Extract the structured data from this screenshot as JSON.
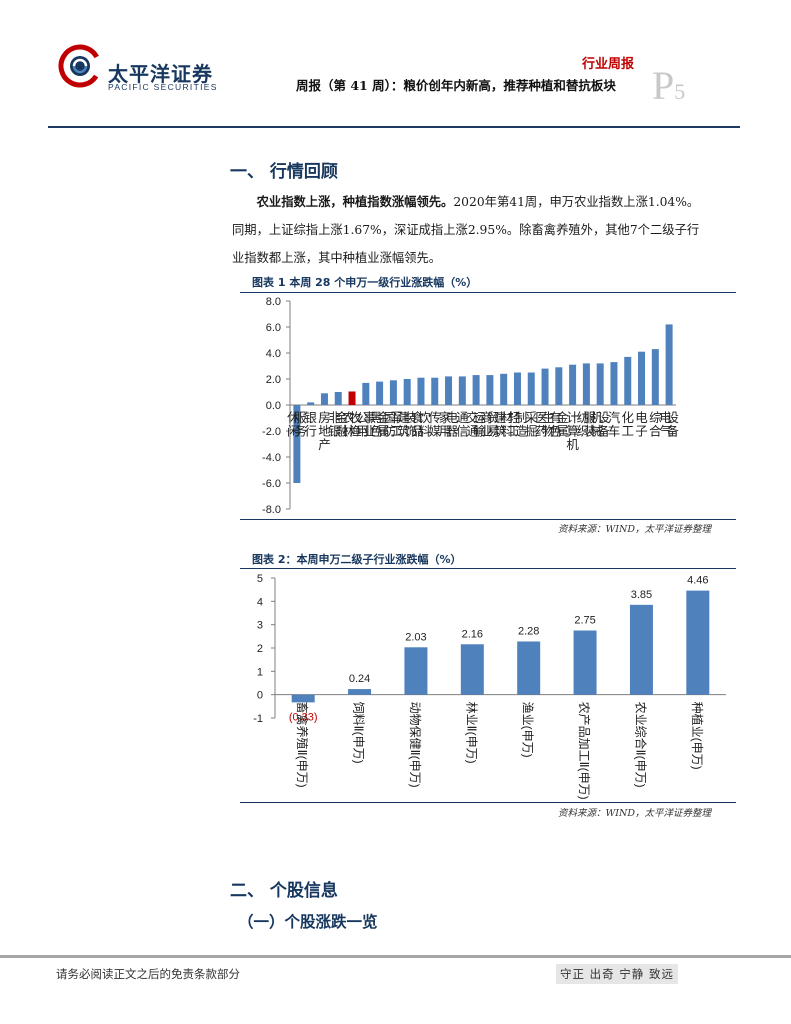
{
  "header": {
    "brand_cn": "太平洋证券",
    "brand_en": "PACIFIC SECURITIES",
    "report_type": "行业周报",
    "title": "周报（第 41 周）：粮价创年内新高，推荐种植和替抗板块",
    "page_letter": "P",
    "page_number": "5",
    "colors": {
      "brand": "#17375e",
      "accent": "#c00000"
    }
  },
  "section1": {
    "heading": "一、 行情回顾",
    "para_lead": "农业指数上涨，种植指数涨幅领先。",
    "para_line1": "2020年第41周，申万农业指数上涨1.04%。",
    "para_line2": "同期，上证综指上涨1.67%，深证成指上涨2.95%。除畜禽养殖外，其他7个二级子行",
    "para_line3": "业指数都上涨，其中种植业涨幅领先。"
  },
  "figure1": {
    "title": "图表 1 本周 28 个申万一级行业涨跌幅（%）",
    "source": "资料来源：WIND，太平洋证券整理"
  },
  "figure2": {
    "title": "图表 2：本周申万二级子行业涨跌幅（%）",
    "source": "资料来源：WIND，太平洋证券整理"
  },
  "chart_data": [
    {
      "type": "bar",
      "title": "图表 1 本周 28 个申万一级行业涨跌幅（%）",
      "categories": [
        "休闲服务",
        "银行",
        "房地产",
        "非银金融",
        "农林牧渔",
        "公用事业",
        "黑色金属",
        "国防军工",
        "建筑装饰",
        "食品饮料",
        "传媒",
        "家用电器",
        "通信",
        "交通运输",
        "商业贸易",
        "建筑材料",
        "轻工制造",
        "采掘",
        "医药生物",
        "有色金属",
        "计算机",
        "纺织服装",
        "机械设备",
        "汽车",
        "化工",
        "电子",
        "综合",
        "电气设备"
      ],
      "values": [
        -6.0,
        0.2,
        0.9,
        1.0,
        1.04,
        1.7,
        1.8,
        1.9,
        2.0,
        2.1,
        2.1,
        2.2,
        2.2,
        2.3,
        2.3,
        2.4,
        2.5,
        2.5,
        2.8,
        2.9,
        3.1,
        3.2,
        3.2,
        3.3,
        3.7,
        4.1,
        4.3,
        6.2
      ],
      "highlight": "农林牧渔",
      "bar_color": "#4f81bd",
      "highlight_color": "#c00000",
      "ylim": [
        -8,
        8
      ],
      "yticks": [
        "8.0",
        "6.0",
        "4.0",
        "2.0",
        "0.0",
        "-2.0",
        "-4.0",
        "-6.0",
        "-8.0"
      ],
      "grid": false,
      "legend": "none"
    },
    {
      "type": "bar",
      "title": "图表 2：本周申万二级子行业涨跌幅（%）",
      "categories": [
        "畜禽养殖Ⅱ(申万)",
        "饲料Ⅱ(申万)",
        "动物保健Ⅱ(申万)",
        "林业Ⅱ(申万)",
        "渔业(申万)",
        "农产品加工Ⅱ(申万)",
        "农业综合Ⅱ(申万)",
        "种植业(申万)"
      ],
      "values": [
        -0.33,
        0.24,
        2.03,
        2.16,
        2.28,
        2.75,
        3.85,
        4.46
      ],
      "data_labels": [
        "(0.33)",
        "0.24",
        "2.03",
        "2.16",
        "2.28",
        "2.75",
        "3.85",
        "4.46"
      ],
      "bar_color": "#4f81bd",
      "negative_label_color": "#c00000",
      "ylim": [
        -1,
        5
      ],
      "yticks": [
        "5",
        "4",
        "3",
        "2",
        "1",
        "0",
        "-1"
      ],
      "grid": false,
      "legend": "none"
    }
  ],
  "section2": {
    "heading": "二、 个股信息",
    "subheading": "（一）个股涨跌一览"
  },
  "footer": {
    "disclaimer": "请务必阅读正文之后的免责条款部分",
    "motto": "守正 出奇 宁静 致远"
  }
}
